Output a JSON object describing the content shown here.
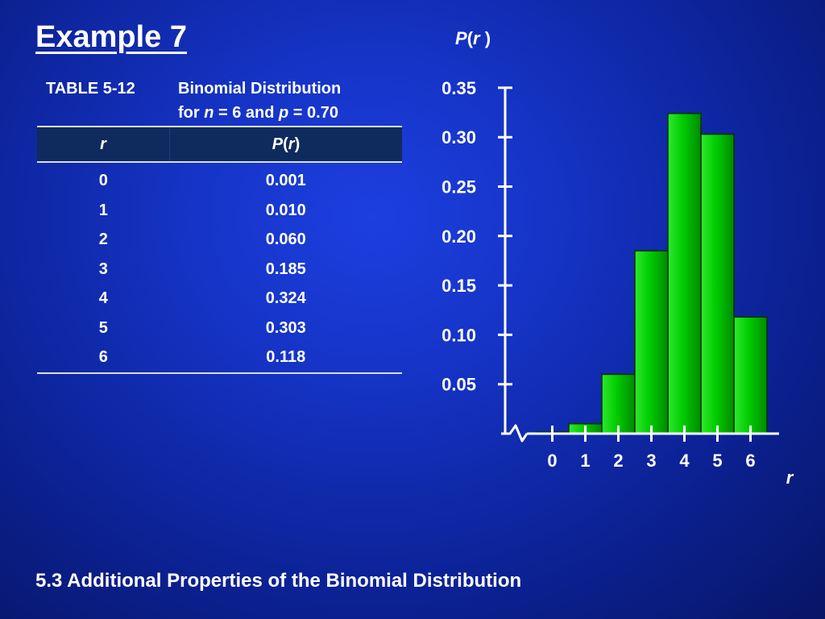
{
  "slide": {
    "title": "Example 7",
    "footer": "5.3 Additional Properties of the Binomial Distribution"
  },
  "table": {
    "number": "TABLE 5-12",
    "caption_line1": "Binomial Distribution",
    "caption_for": "for ",
    "caption_n": "n",
    "caption_mid": " = 6 and ",
    "caption_p": "p",
    "caption_end": " = 0.70",
    "header_r": "r",
    "header_p_P": "P",
    "header_p_open": "(",
    "header_p_r": "r",
    "header_p_close": ")",
    "rows": [
      {
        "r": "0",
        "p": "0.001"
      },
      {
        "r": "1",
        "p": "0.010"
      },
      {
        "r": "2",
        "p": "0.060"
      },
      {
        "r": "3",
        "p": "0.185"
      },
      {
        "r": "4",
        "p": "0.324"
      },
      {
        "r": "5",
        "p": "0.303"
      },
      {
        "r": "6",
        "p": "0.118"
      }
    ]
  },
  "chart_data": {
    "type": "bar",
    "title": "",
    "ylabel_P": "P",
    "ylabel_open": "(",
    "ylabel_r": "r",
    "ylabel_close": ")",
    "xlabel": "r",
    "categories": [
      "0",
      "1",
      "2",
      "3",
      "4",
      "5",
      "6"
    ],
    "values": [
      0.001,
      0.01,
      0.06,
      0.185,
      0.324,
      0.303,
      0.118
    ],
    "ylim": [
      0,
      0.35
    ],
    "yticks": [
      "0.05",
      "0.10",
      "0.15",
      "0.20",
      "0.25",
      "0.30",
      "0.35"
    ],
    "axis_break": true,
    "grid": false,
    "bar_color": "#00cc00",
    "bar_edge_color": "#003300"
  }
}
